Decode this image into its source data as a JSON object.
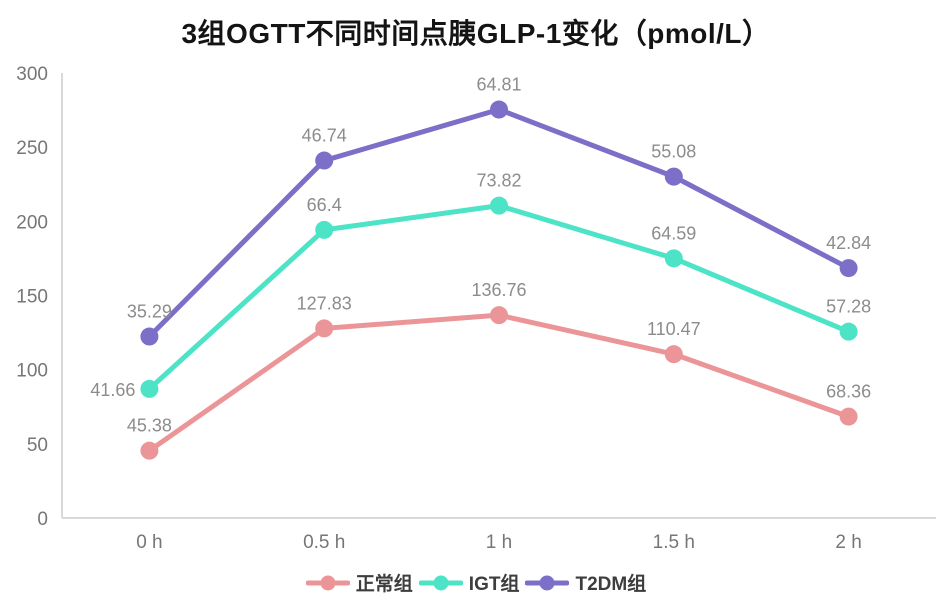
{
  "title": "3组OGTT不同时间点胰GLP-1变化（pmol/L）",
  "chart_data": {
    "type": "line",
    "stacked": true,
    "title": "3组OGTT不同时间点胰GLP-1变化（pmol/L）",
    "categories": [
      "0 h",
      "0.5 h",
      "1 h",
      "1.5 h",
      "2 h"
    ],
    "series": [
      {
        "name": "正常组",
        "color": "#ec9598",
        "values": [
          45.38,
          127.83,
          136.76,
          110.47,
          68.36
        ],
        "labels": [
          "45.38",
          "127.83",
          "136.76",
          "110.47",
          "68.36"
        ]
      },
      {
        "name": "IGT组",
        "color": "#4cе3c6",
        "values": [
          41.66,
          66.4,
          73.82,
          64.59,
          57.28
        ],
        "labels": [
          "41.66",
          "66.4",
          "73.82",
          "64.59",
          "57.28"
        ]
      },
      {
        "name": "T2DM组",
        "color": "#7b6fc8",
        "values": [
          35.29,
          46.74,
          64.81,
          55.08,
          42.84
        ],
        "labels": [
          "35.29",
          "46.74",
          "64.81",
          "55.08",
          "42.84"
        ]
      }
    ],
    "series_colors": [
      "#ec9598",
      "#4de3c6",
      "#7b6fc8"
    ],
    "ylim": [
      0,
      300
    ],
    "yticks": [
      0,
      50,
      100,
      150,
      200,
      250,
      300
    ],
    "xlabel": "",
    "ylabel": "",
    "grid": false,
    "legend_position": "bottom",
    "data_labels": true,
    "label_overrides": [
      {
        "series": 1,
        "point": 0,
        "dx": -14,
        "dy": 7,
        "anchor": "end"
      }
    ]
  },
  "colors": {
    "axis_line": "#d9d9d9",
    "tick_label": "#767676",
    "data_label": "#8c8c8c",
    "legend_text": "#3d3d3d",
    "title_text": "#141414",
    "background": "#ffffff"
  }
}
